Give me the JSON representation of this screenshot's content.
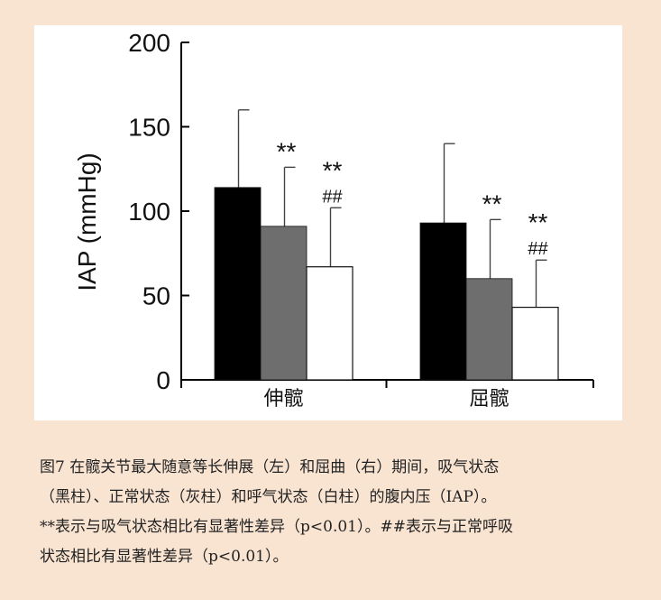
{
  "chart_data": {
    "type": "bar",
    "ylabel": "IAP (mmHg)",
    "ylim": [
      0,
      200
    ],
    "yticks": [
      0,
      50,
      100,
      150,
      200
    ],
    "categories": [
      "伸髋",
      "屈髋"
    ],
    "series": [
      {
        "color": "#000000",
        "values": [
          114,
          93
        ],
        "errors": [
          46,
          47
        ],
        "annotations": [
          "",
          ""
        ]
      },
      {
        "color": "#6e6e6e",
        "values": [
          91,
          60
        ],
        "errors": [
          35,
          35
        ],
        "annotations": [
          "**",
          "**"
        ]
      },
      {
        "color": "#ffffff",
        "values": [
          67,
          43
        ],
        "errors": [
          35,
          28
        ],
        "annotations": [
          "**\n##",
          "**\n##"
        ]
      }
    ],
    "grid": false,
    "legend": "none"
  },
  "caption": {
    "lines": [
      "图7 在髋关节最大随意等长伸展（左）和屈曲（右）期间，吸气状态",
      "（黑柱）、正常状态（灰柱）和呼气状态（白柱）的腹内压（IAP）。",
      "**表示与吸气状态相比有显著性差异（p<0.01）。##表示与正常呼吸",
      "状态相比有显著性差异（p<0.01）。"
    ]
  }
}
